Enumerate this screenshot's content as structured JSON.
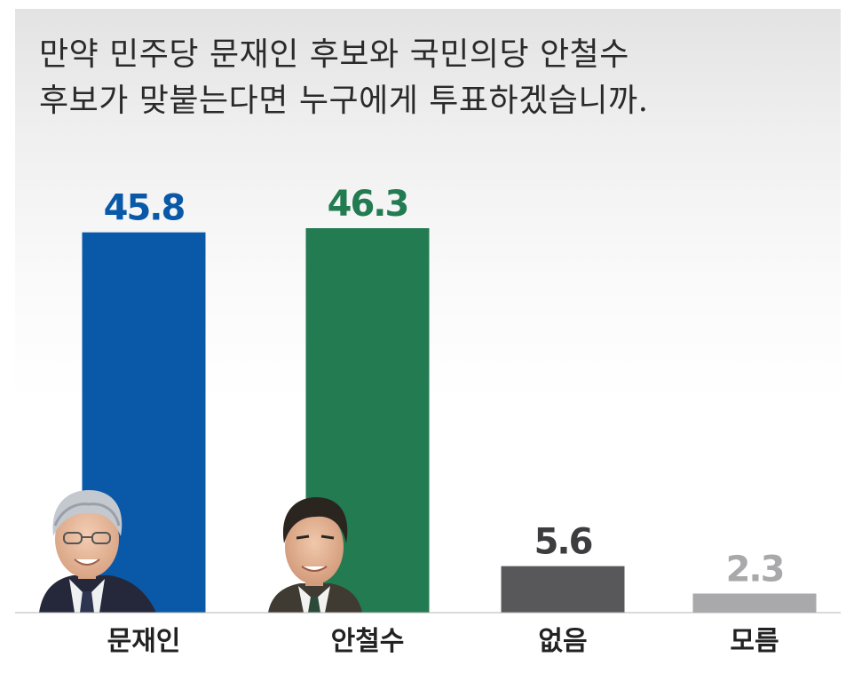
{
  "chart_data": {
    "type": "bar",
    "title_lines": [
      "만약 민주당 문재인 후보와 국민의당 안철수",
      "후보가 맞붙는다면 누구에게 투표하겠습니까."
    ],
    "categories": [
      "문재인",
      "안철수",
      "없음",
      "모름"
    ],
    "values": [
      45.8,
      46.3,
      5.6,
      2.3
    ],
    "value_labels": [
      "45.8",
      "46.3",
      "5.6",
      "2.3"
    ],
    "bar_colors": [
      "#0a59a8",
      "#237b51",
      "#58585a",
      "#a9a9ab"
    ],
    "label_colors": [
      "#0a59a8",
      "#237b51",
      "#3d3d3f",
      "#a9a9ab"
    ],
    "xlabel": "",
    "ylabel": "",
    "ylim": [
      0,
      46.3
    ],
    "grid": false,
    "legend": "none",
    "photos": [
      "portrait-moon",
      "portrait-ahn"
    ]
  }
}
